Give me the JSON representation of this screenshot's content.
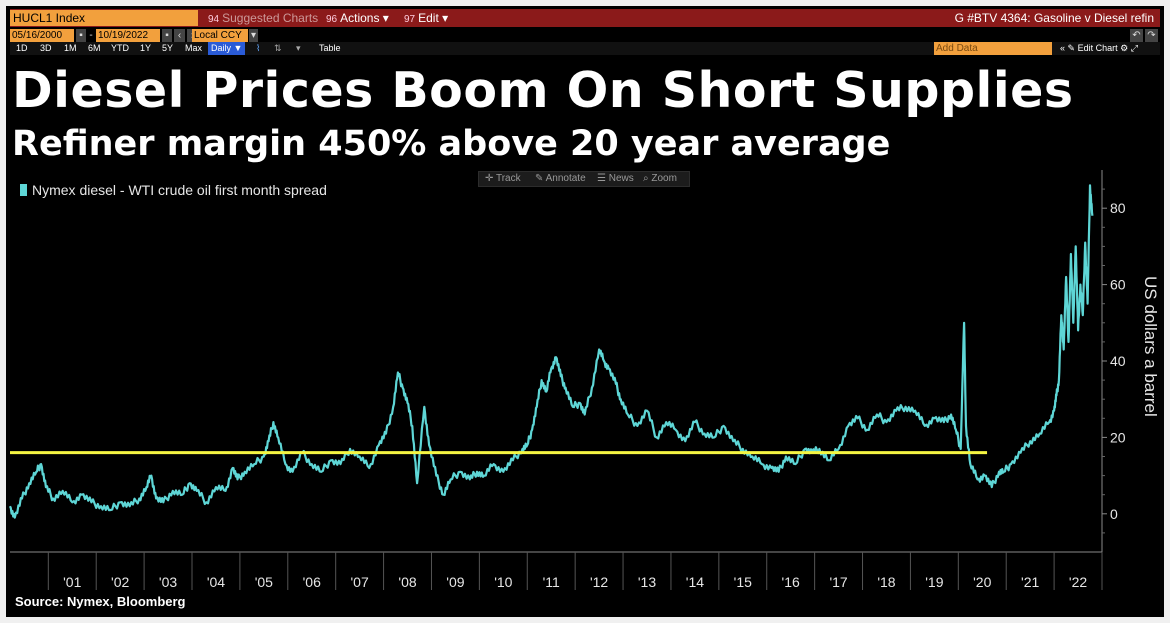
{
  "window": {
    "security": "HUCL1 Index",
    "menu": [
      {
        "num": "94",
        "label": "Suggested Charts",
        "dim": true
      },
      {
        "num": "96",
        "label": "Actions ▾",
        "dim": false
      },
      {
        "num": "97",
        "label": "Edit ▾",
        "dim": false
      }
    ],
    "chart_title": "G #BTV 4364: Gasoline v Diesel refin",
    "start_date": "05/16/2000",
    "end_date": "10/19/2022",
    "currency": "Local CCY",
    "ranges": [
      "1D",
      "3D",
      "1M",
      "6M",
      "YTD",
      "1Y",
      "5Y",
      "Max"
    ],
    "frequency": "Daily ▼",
    "table_label": "Table",
    "add_data_placeholder": "Add Data",
    "edit_chart_label": "Edit Chart",
    "tools": [
      "Track",
      "Annotate",
      "News",
      "Zoom"
    ]
  },
  "chart_data": {
    "type": "line",
    "title": "Diesel Prices Boom On Short Supplies",
    "subtitle": "Refiner margin 450% above 20 year average",
    "legend": "Nymex diesel - WTI crude oil first month spread",
    "ylabel": "US dollars a barrel",
    "source": "Source: Nymex, Bloomberg",
    "ylim": [
      -10,
      90
    ],
    "yticks": [
      0,
      20,
      40,
      60,
      80
    ],
    "xlim": [
      2000.2,
      2023.0
    ],
    "x_tick_labels": [
      {
        "year": 2001,
        "label": "'01"
      },
      {
        "year": 2002,
        "label": "'02"
      },
      {
        "year": 2003,
        "label": "'03"
      },
      {
        "year": 2004,
        "label": "'04"
      },
      {
        "year": 2005,
        "label": "'05"
      },
      {
        "year": 2006,
        "label": "'06"
      },
      {
        "year": 2007,
        "label": "'07"
      },
      {
        "year": 2008,
        "label": "'08"
      },
      {
        "year": 2009,
        "label": "'09"
      },
      {
        "year": 2010,
        "label": "'10"
      },
      {
        "year": 2011,
        "label": "'11"
      },
      {
        "year": 2012,
        "label": "'12"
      },
      {
        "year": 2013,
        "label": "'13"
      },
      {
        "year": 2014,
        "label": "'14"
      },
      {
        "year": 2015,
        "label": "'15"
      },
      {
        "year": 2016,
        "label": "'16"
      },
      {
        "year": 2017,
        "label": "'17"
      },
      {
        "year": 2018,
        "label": "'18"
      },
      {
        "year": 2019,
        "label": "'19"
      },
      {
        "year": 2020,
        "label": "'20"
      },
      {
        "year": 2021,
        "label": "'21"
      },
      {
        "year": 2022,
        "label": "'22"
      }
    ],
    "average_line": {
      "value": 16,
      "x_start": 2000.2,
      "x_end": 2020.6,
      "color": "#f5f542"
    },
    "series": [
      {
        "color": "#5ed6d6",
        "points": [
          [
            2000.2,
            2
          ],
          [
            2000.3,
            -1
          ],
          [
            2000.45,
            4
          ],
          [
            2000.6,
            8
          ],
          [
            2000.75,
            11
          ],
          [
            2000.85,
            13
          ],
          [
            2000.95,
            7
          ],
          [
            2001.1,
            4
          ],
          [
            2001.3,
            6
          ],
          [
            2001.5,
            3
          ],
          [
            2001.7,
            5
          ],
          [
            2001.9,
            3
          ],
          [
            2002.1,
            2
          ],
          [
            2002.3,
            1
          ],
          [
            2002.5,
            3
          ],
          [
            2002.7,
            2
          ],
          [
            2002.9,
            4
          ],
          [
            2003.05,
            7
          ],
          [
            2003.15,
            10
          ],
          [
            2003.25,
            4
          ],
          [
            2003.4,
            3
          ],
          [
            2003.6,
            6
          ],
          [
            2003.8,
            5
          ],
          [
            2003.95,
            8
          ],
          [
            2004.1,
            6
          ],
          [
            2004.3,
            3
          ],
          [
            2004.5,
            7
          ],
          [
            2004.7,
            6
          ],
          [
            2004.85,
            12
          ],
          [
            2004.95,
            9
          ],
          [
            2005.1,
            11
          ],
          [
            2005.3,
            13
          ],
          [
            2005.5,
            15
          ],
          [
            2005.6,
            19
          ],
          [
            2005.7,
            24
          ],
          [
            2005.8,
            20
          ],
          [
            2005.95,
            13
          ],
          [
            2006.1,
            11
          ],
          [
            2006.3,
            16
          ],
          [
            2006.5,
            13
          ],
          [
            2006.7,
            11
          ],
          [
            2006.9,
            14
          ],
          [
            2007.1,
            13
          ],
          [
            2007.3,
            17
          ],
          [
            2007.5,
            15
          ],
          [
            2007.7,
            12
          ],
          [
            2007.9,
            18
          ],
          [
            2008.05,
            21
          ],
          [
            2008.2,
            28
          ],
          [
            2008.3,
            37
          ],
          [
            2008.4,
            33
          ],
          [
            2008.5,
            29
          ],
          [
            2008.6,
            23
          ],
          [
            2008.7,
            8
          ],
          [
            2008.85,
            28
          ],
          [
            2008.95,
            18
          ],
          [
            2009.1,
            10
          ],
          [
            2009.25,
            5
          ],
          [
            2009.4,
            9
          ],
          [
            2009.6,
            11
          ],
          [
            2009.8,
            9
          ],
          [
            2009.95,
            11
          ],
          [
            2010.1,
            10
          ],
          [
            2010.3,
            13
          ],
          [
            2010.5,
            11
          ],
          [
            2010.7,
            14
          ],
          [
            2010.9,
            17
          ],
          [
            2011.0,
            18
          ],
          [
            2011.1,
            22
          ],
          [
            2011.2,
            28
          ],
          [
            2011.3,
            35
          ],
          [
            2011.4,
            32
          ],
          [
            2011.5,
            38
          ],
          [
            2011.6,
            41
          ],
          [
            2011.7,
            36
          ],
          [
            2011.8,
            33
          ],
          [
            2011.95,
            28
          ],
          [
            2012.1,
            29
          ],
          [
            2012.2,
            26
          ],
          [
            2012.35,
            33
          ],
          [
            2012.5,
            43
          ],
          [
            2012.6,
            40
          ],
          [
            2012.7,
            38
          ],
          [
            2012.85,
            34
          ],
          [
            2012.95,
            30
          ],
          [
            2013.1,
            26
          ],
          [
            2013.3,
            23
          ],
          [
            2013.5,
            27
          ],
          [
            2013.7,
            20
          ],
          [
            2013.9,
            24
          ],
          [
            2014.1,
            22
          ],
          [
            2014.3,
            19
          ],
          [
            2014.5,
            24
          ],
          [
            2014.7,
            21
          ],
          [
            2014.9,
            20
          ],
          [
            2015.1,
            23
          ],
          [
            2015.3,
            19
          ],
          [
            2015.5,
            17
          ],
          [
            2015.7,
            15
          ],
          [
            2015.9,
            13
          ],
          [
            2016.1,
            12
          ],
          [
            2016.25,
            11
          ],
          [
            2016.4,
            15
          ],
          [
            2016.6,
            13
          ],
          [
            2016.8,
            17
          ],
          [
            2016.95,
            16
          ],
          [
            2017.1,
            17
          ],
          [
            2017.3,
            14
          ],
          [
            2017.5,
            17
          ],
          [
            2017.7,
            23
          ],
          [
            2017.9,
            25
          ],
          [
            2018.1,
            22
          ],
          [
            2018.3,
            26
          ],
          [
            2018.5,
            24
          ],
          [
            2018.7,
            27
          ],
          [
            2018.9,
            28
          ],
          [
            2019.1,
            27
          ],
          [
            2019.3,
            23
          ],
          [
            2019.5,
            25
          ],
          [
            2019.7,
            24
          ],
          [
            2019.85,
            26
          ],
          [
            2019.95,
            22
          ],
          [
            2020.05,
            17
          ],
          [
            2020.12,
            50
          ],
          [
            2020.16,
            23
          ],
          [
            2020.25,
            13
          ],
          [
            2020.4,
            9
          ],
          [
            2020.55,
            10
          ],
          [
            2020.7,
            7
          ],
          [
            2020.85,
            11
          ],
          [
            2020.95,
            11
          ],
          [
            2021.1,
            13
          ],
          [
            2021.3,
            16
          ],
          [
            2021.5,
            19
          ],
          [
            2021.7,
            21
          ],
          [
            2021.9,
            24
          ],
          [
            2022.0,
            27
          ],
          [
            2022.05,
            31
          ],
          [
            2022.1,
            35
          ],
          [
            2022.15,
            52
          ],
          [
            2022.2,
            43
          ],
          [
            2022.25,
            62
          ],
          [
            2022.3,
            45
          ],
          [
            2022.35,
            68
          ],
          [
            2022.4,
            50
          ],
          [
            2022.45,
            70
          ],
          [
            2022.5,
            48
          ],
          [
            2022.55,
            60
          ],
          [
            2022.6,
            52
          ],
          [
            2022.65,
            71
          ],
          [
            2022.7,
            55
          ],
          [
            2022.75,
            86
          ],
          [
            2022.8,
            78
          ]
        ]
      }
    ]
  }
}
